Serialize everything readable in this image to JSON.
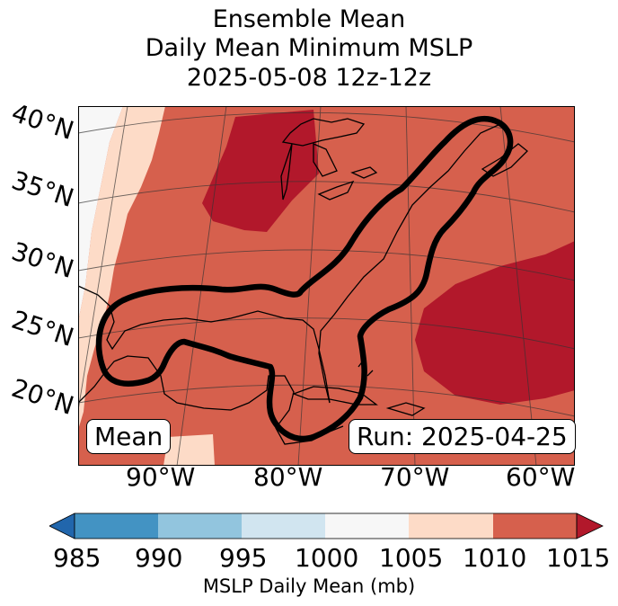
{
  "title": {
    "line1": "Ensemble Mean",
    "line2": "Daily Mean Minimum MSLP",
    "line3": "2025-05-08 12z-12z"
  },
  "map": {
    "region": "Gulf of Mexico and U.S. East Coast",
    "lat_labels": [
      "40°N",
      "35°N",
      "30°N",
      "25°N",
      "20°N"
    ],
    "lon_labels": [
      "90°W",
      "80°W",
      "70°W",
      "60°W"
    ],
    "panel_left_label": "Mean",
    "panel_right_label": "Run: 2025-04-25",
    "contour_color": "#000000",
    "ocean_high_color": "#b2182b"
  },
  "colorbar": {
    "label": "MSLP Daily Mean (mb)",
    "ticks": [
      "985",
      "990",
      "995",
      "1000",
      "1005",
      "1010",
      "1015"
    ],
    "bins": [
      {
        "range": "<985",
        "color": "#2166ac"
      },
      {
        "range": "985-990",
        "color": "#4393c3"
      },
      {
        "range": "990-995",
        "color": "#92c5de"
      },
      {
        "range": "995-1000",
        "color": "#d1e5f0"
      },
      {
        "range": "1000-1005",
        "color": "#f7f7f7"
      },
      {
        "range": "1005-1010",
        "color": "#fddbc7"
      },
      {
        "range": "1010-1015",
        "color": "#d6604d"
      },
      {
        "range": ">1015",
        "color": "#b2182b"
      }
    ]
  }
}
